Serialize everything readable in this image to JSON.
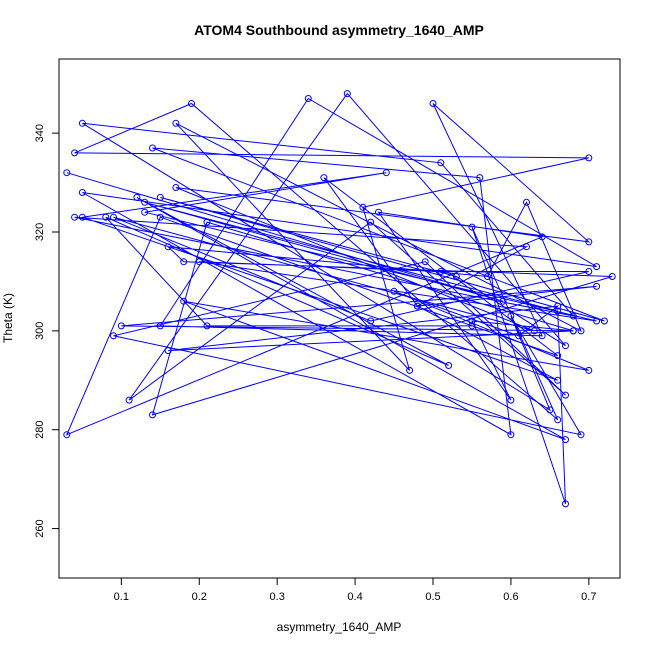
{
  "chart_data": {
    "type": "line",
    "title": "ATOM4 Southbound asymmetry_1640_AMP",
    "xlabel": "asymmetry_1640_AMP",
    "ylabel": "Theta (K)",
    "xlim": [
      0.02,
      0.74
    ],
    "ylim": [
      250,
      355
    ],
    "xticks": [
      0.1,
      0.2,
      0.3,
      0.4,
      0.5,
      0.6,
      0.7
    ],
    "yticks": [
      260,
      280,
      300,
      320,
      340
    ],
    "grid": false,
    "legend": "none",
    "series": [
      {
        "color": "#0000ff",
        "marker": "open-circle",
        "points": [
          [
            0.03,
            332
          ],
          [
            0.59,
            306
          ],
          [
            0.13,
            326
          ],
          [
            0.66,
            304
          ],
          [
            0.67,
            265
          ],
          [
            0.55,
            321
          ],
          [
            0.66,
            282
          ],
          [
            0.19,
            346
          ],
          [
            0.04,
            336
          ],
          [
            0.7,
            335
          ],
          [
            0.41,
            325
          ],
          [
            0.47,
            292
          ],
          [
            0.17,
            342
          ],
          [
            0.69,
            300
          ],
          [
            0.62,
            326
          ],
          [
            0.57,
            311
          ],
          [
            0.16,
            317
          ],
          [
            0.18,
            314
          ],
          [
            0.73,
            311
          ],
          [
            0.14,
            283
          ],
          [
            0.21,
            322
          ],
          [
            0.68,
            300
          ],
          [
            0.55,
            302
          ],
          [
            0.6,
            286
          ],
          [
            0.43,
            324
          ],
          [
            0.64,
            319
          ],
          [
            0.03,
            279
          ],
          [
            0.15,
            323
          ],
          [
            0.66,
            295
          ],
          [
            0.36,
            331
          ],
          [
            0.48,
            305
          ],
          [
            0.62,
            317
          ],
          [
            0.04,
            323
          ],
          [
            0.68,
            303
          ],
          [
            0.51,
            334
          ],
          [
            0.05,
            342
          ],
          [
            0.65,
            284
          ],
          [
            0.6,
            303
          ],
          [
            0.69,
            279
          ],
          [
            0.09,
            299
          ],
          [
            0.49,
            314
          ],
          [
            0.67,
            287
          ],
          [
            0.42,
            322
          ],
          [
            0.11,
            286
          ],
          [
            0.39,
            348
          ],
          [
            0.67,
            297
          ],
          [
            0.53,
            311
          ],
          [
            0.15,
            327
          ],
          [
            0.72,
            302
          ],
          [
            0.14,
            337
          ],
          [
            0.56,
            331
          ],
          [
            0.6,
            279
          ],
          [
            0.05,
            328
          ],
          [
            0.71,
            313
          ],
          [
            0.34,
            347
          ],
          [
            0.15,
            301
          ],
          [
            0.64,
            299
          ],
          [
            0.5,
            346
          ],
          [
            0.7,
            318
          ],
          [
            0.17,
            329
          ],
          [
            0.63,
            300
          ],
          [
            0.09,
            323
          ],
          [
            0.42,
            302
          ],
          [
            0.7,
            312
          ],
          [
            0.51,
            312
          ],
          [
            0.2,
            314
          ],
          [
            0.71,
            302
          ],
          [
            0.13,
            324
          ],
          [
            0.44,
            332
          ],
          [
            0.05,
            323
          ],
          [
            0.66,
            290
          ],
          [
            0.48,
            305
          ],
          [
            0.71,
            309
          ],
          [
            0.1,
            301
          ],
          [
            0.68,
            300
          ],
          [
            0.16,
            296
          ],
          [
            0.66,
            305
          ],
          [
            0.61,
            299
          ],
          [
            0.45,
            308
          ],
          [
            0.7,
            292
          ],
          [
            0.18,
            306
          ],
          [
            0.67,
            278
          ],
          [
            0.12,
            327
          ],
          [
            0.52,
            293
          ],
          [
            0.08,
            323
          ],
          [
            0.21,
            301
          ],
          [
            0.55,
            301
          ]
        ]
      }
    ]
  }
}
